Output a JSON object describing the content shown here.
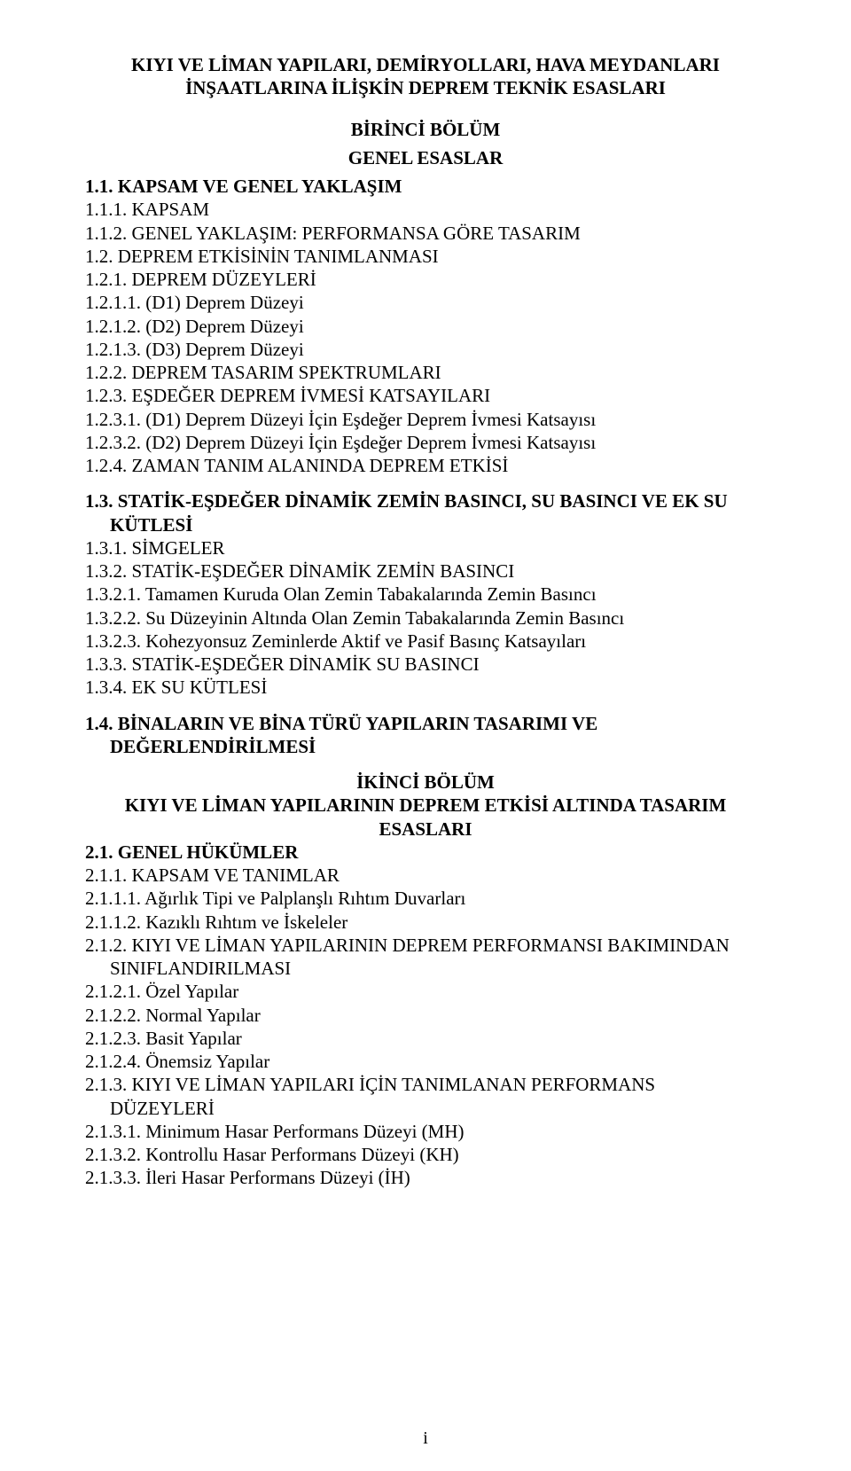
{
  "title": {
    "line1": "KIYI VE LİMAN YAPILARI, DEMİRYOLLARI, HAVA MEYDANLARI",
    "line2": "İNŞAATLARINA İLİŞKİN DEPREM TEKNİK ESASLARI"
  },
  "part1": {
    "section_title1": "BİRİNCİ BÖLÜM",
    "section_title2": "GENEL ESASLAR",
    "s1_1": "1.1. KAPSAM VE GENEL YAKLAŞIM",
    "s1_1_1": "1.1.1. KAPSAM",
    "s1_1_2": "1.1.2. GENEL YAKLAŞIM: PERFORMANSA GÖRE TASARIM",
    "s1_2": "1.2. DEPREM ETKİSİNİN TANIMLANMASI",
    "s1_2_1": "1.2.1. DEPREM DÜZEYLERİ",
    "s1_2_1_1": "1.2.1.1. (D1) Deprem Düzeyi",
    "s1_2_1_2": "1.2.1.2. (D2) Deprem Düzeyi",
    "s1_2_1_3": "1.2.1.3. (D3) Deprem Düzeyi",
    "s1_2_2": "1.2.2. DEPREM TASARIM SPEKTRUMLARI",
    "s1_2_3": "1.2.3. EŞDEĞER DEPREM İVMESİ KATSAYILARI",
    "s1_2_3_1": "1.2.3.1. (D1) Deprem Düzeyi İçin Eşdeğer Deprem İvmesi Katsayısı",
    "s1_2_3_2": "1.2.3.2. (D2) Deprem Düzeyi İçin Eşdeğer Deprem İvmesi Katsayısı",
    "s1_2_4": "1.2.4. ZAMAN TANIM ALANINDA DEPREM ETKİSİ",
    "s1_3_a": "1.3. STATİK-EŞDEĞER DİNAMİK ZEMİN BASINCI, SU BASINCI VE EK SU",
    "s1_3_b": "KÜTLESİ",
    "s1_3_1": "1.3.1. SİMGELER",
    "s1_3_2": "1.3.2. STATİK-EŞDEĞER DİNAMİK ZEMİN BASINCI",
    "s1_3_2_1": "1.3.2.1. Tamamen Kuruda Olan Zemin Tabakalarında Zemin Basıncı",
    "s1_3_2_2": "1.3.2.2. Su Düzeyinin Altında Olan Zemin Tabakalarında Zemin Basıncı",
    "s1_3_2_3": "1.3.2.3. Kohezyonsuz Zeminlerde Aktif ve Pasif Basınç Katsayıları",
    "s1_3_3": "1.3.3. STATİK-EŞDEĞER DİNAMİK SU BASINCI",
    "s1_3_4": "1.3.4. EK SU KÜTLESİ",
    "s1_4_a": "1.4. BİNALARIN VE BİNA TÜRÜ YAPILARIN TASARIMI VE",
    "s1_4_b": "DEĞERLENDİRİLMESİ"
  },
  "part2": {
    "section_title1": "İKİNCİ BÖLÜM",
    "section_title2a": "KIYI VE LİMAN YAPILARININ DEPREM ETKİSİ ALTINDA TASARIM",
    "section_title2b": "ESASLARI",
    "s2_1": "2.1. GENEL HÜKÜMLER",
    "s2_1_1": "2.1.1.  KAPSAM VE TANIMLAR",
    "s2_1_1_1": "2.1.1.1. Ağırlık Tipi ve Palplanşlı Rıhtım Duvarları",
    "s2_1_1_2": "2.1.1.2. Kazıklı Rıhtım ve İskeleler",
    "s2_1_2_a": "2.1.2. KIYI VE LİMAN YAPILARININ DEPREM PERFORMANSI BAKIMINDAN",
    "s2_1_2_b": "SINIFLANDIRILMASI",
    "s2_1_2_1": "2.1.2.1. Özel Yapılar",
    "s2_1_2_2": "2.1.2.2. Normal Yapılar",
    "s2_1_2_3": "2.1.2.3. Basit Yapılar",
    "s2_1_2_4": "2.1.2.4. Önemsiz Yapılar",
    "s2_1_3_a": "2.1.3. KIYI VE LİMAN YAPILARI İÇİN TANIMLANAN PERFORMANS",
    "s2_1_3_b": "DÜZEYLERİ",
    "s2_1_3_1": "2.1.3.1. Minimum Hasar Performans Düzeyi (MH)",
    "s2_1_3_2": "2.1.3.2. Kontrollu Hasar Performans Düzeyi (KH)",
    "s2_1_3_3": "2.1.3.3. İleri Hasar Performans Düzeyi (İH)"
  },
  "footer": {
    "page_number": "i"
  }
}
